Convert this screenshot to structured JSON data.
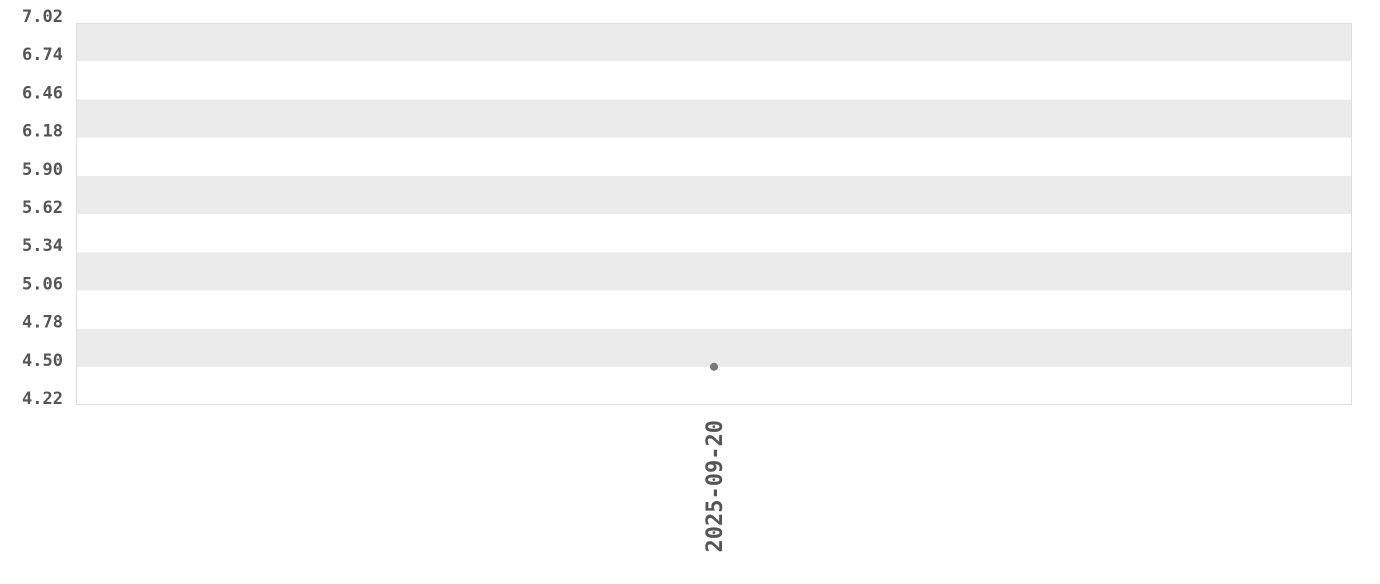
{
  "chart_data": {
    "type": "scatter",
    "title": "",
    "xlabel": "",
    "ylabel": "",
    "categories": [
      "2025-09-20"
    ],
    "values": [
      4.5
    ],
    "ylim": [
      4.22,
      7.02
    ],
    "yticks": [
      "4.22",
      "4.50",
      "4.78",
      "5.06",
      "5.34",
      "5.62",
      "5.90",
      "6.18",
      "6.46",
      "6.74",
      "7.02"
    ],
    "grid": "alternating horizontal bands",
    "colors": {
      "band": "#ebebeb",
      "point": "#777777",
      "text": "#555555",
      "border": "#dddddd"
    }
  }
}
